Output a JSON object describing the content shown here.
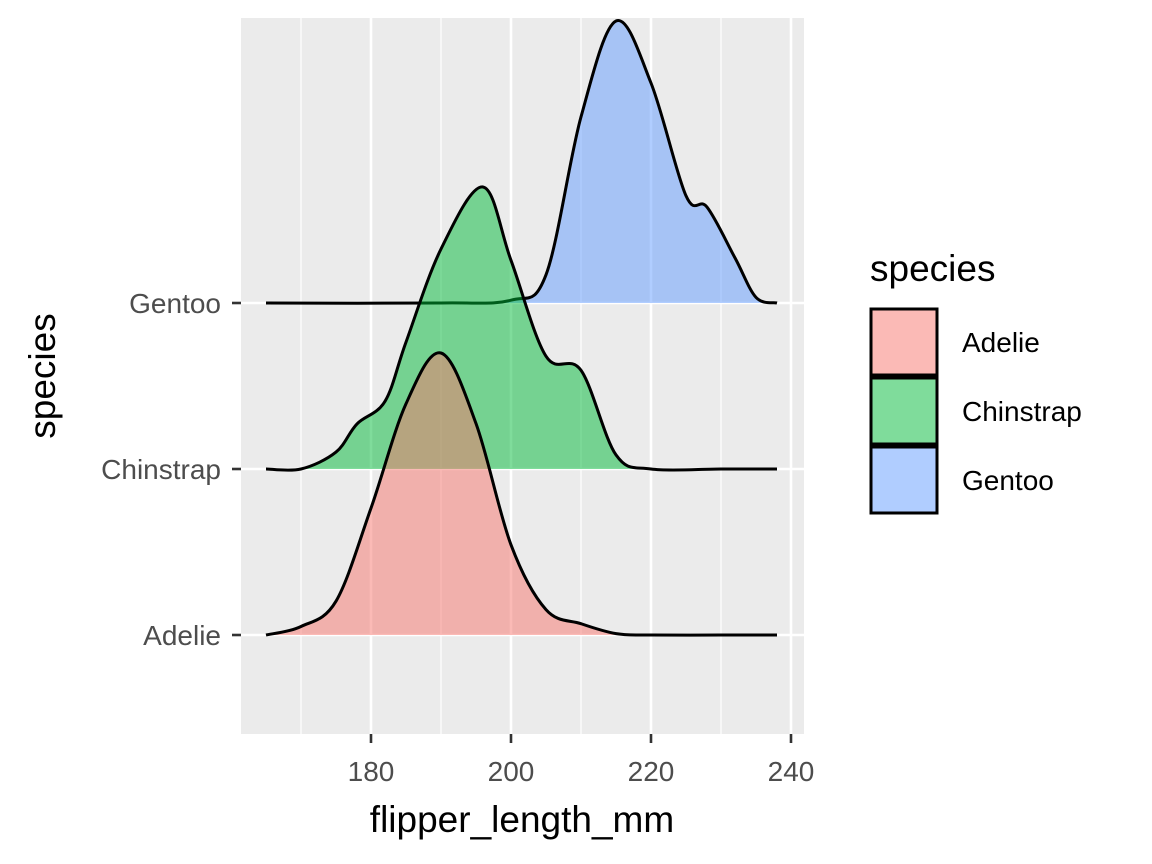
{
  "chart_data": {
    "type": "ridgeline",
    "title": "",
    "xlabel": "flipper_length_mm",
    "ylabel": "species",
    "xlim": [
      162,
      242
    ],
    "x_ticks": [
      180,
      200,
      220,
      240
    ],
    "grid": true,
    "legend": {
      "title": "species",
      "placement": "right",
      "entries": [
        "Adelie",
        "Chinstrap",
        "Gentoo"
      ]
    },
    "series": [
      {
        "name": "Adelie",
        "color": "#F8766D",
        "points": [
          [
            165,
            0
          ],
          [
            170,
            0.03
          ],
          [
            175,
            0.12
          ],
          [
            180,
            0.45
          ],
          [
            185,
            0.82
          ],
          [
            190,
            1.0
          ],
          [
            195,
            0.75
          ],
          [
            200,
            0.32
          ],
          [
            205,
            0.09
          ],
          [
            210,
            0.04
          ],
          [
            215,
            0.005
          ],
          [
            220,
            0
          ],
          [
            230,
            0
          ],
          [
            238,
            0
          ]
        ]
      },
      {
        "name": "Chinstrap",
        "color": "#00BA38",
        "points": [
          [
            165,
            0
          ],
          [
            170,
            0
          ],
          [
            175,
            0.06
          ],
          [
            178,
            0.16
          ],
          [
            182,
            0.24
          ],
          [
            185,
            0.45
          ],
          [
            190,
            0.78
          ],
          [
            196,
            1.0
          ],
          [
            200,
            0.74
          ],
          [
            205,
            0.4
          ],
          [
            210,
            0.35
          ],
          [
            215,
            0.05
          ],
          [
            220,
            0
          ],
          [
            230,
            0
          ],
          [
            238,
            0
          ]
        ]
      },
      {
        "name": "Gentoo",
        "color": "#619CFF",
        "points": [
          [
            165,
            0
          ],
          [
            190,
            0
          ],
          [
            200,
            0.01
          ],
          [
            205,
            0.1
          ],
          [
            210,
            0.66
          ],
          [
            215,
            1.0
          ],
          [
            220,
            0.78
          ],
          [
            225,
            0.38
          ],
          [
            228,
            0.34
          ],
          [
            232,
            0.16
          ],
          [
            235,
            0.02
          ],
          [
            238,
            0
          ]
        ]
      }
    ],
    "y_categories": [
      "Adelie",
      "Chinstrap",
      "Gentoo"
    ]
  }
}
